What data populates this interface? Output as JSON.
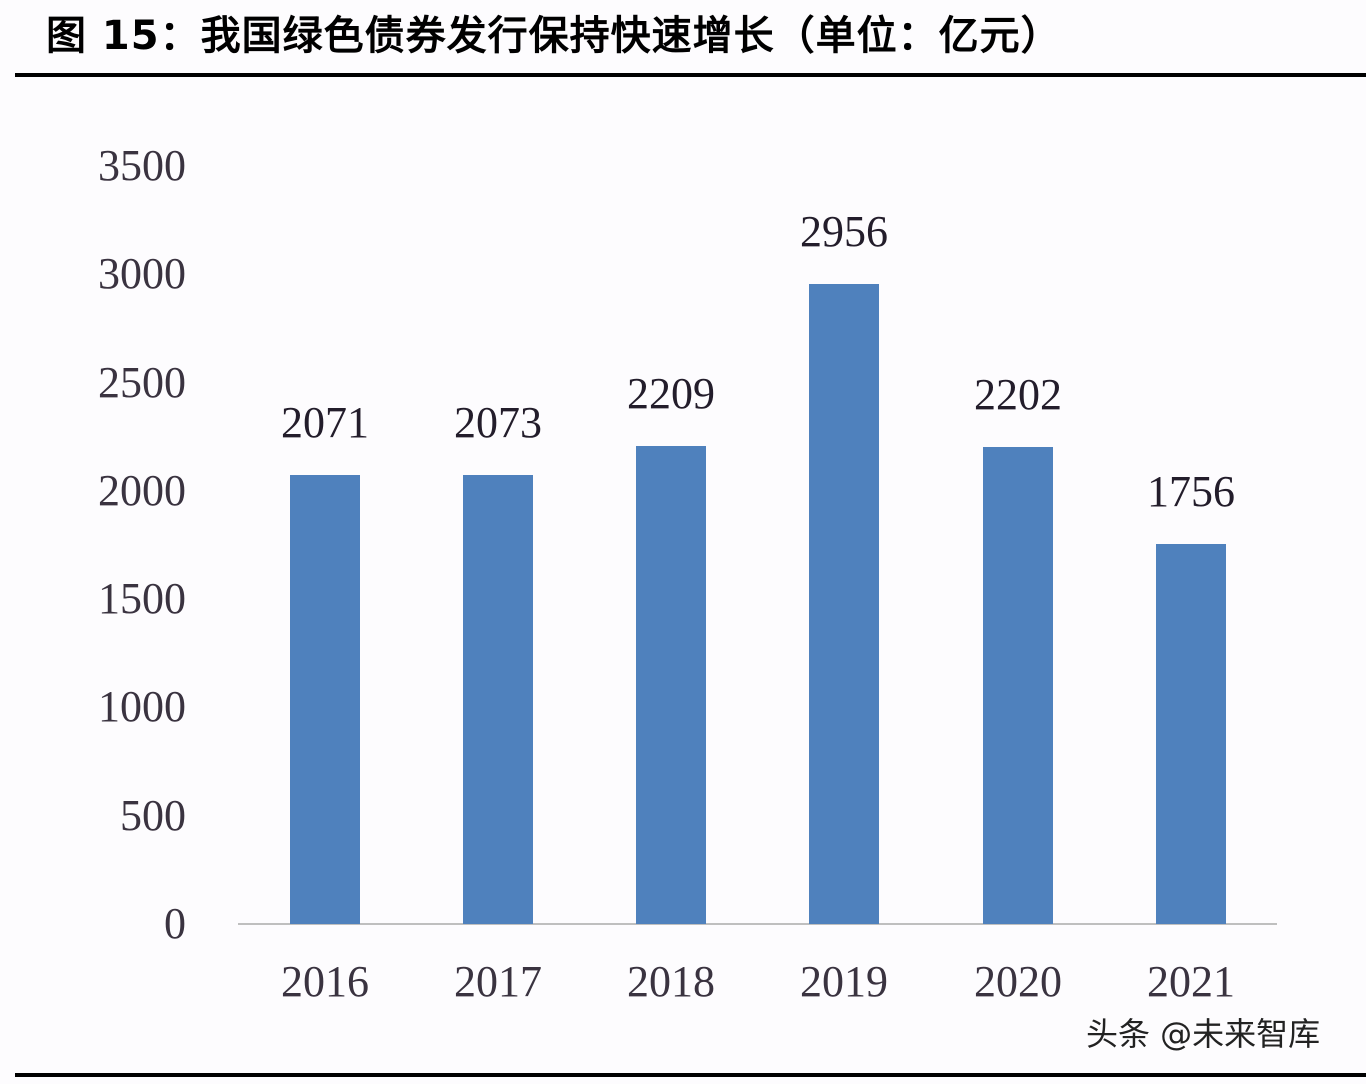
{
  "header": {
    "title": "图 15：我国绿色债券发行保持快速增长（单位：亿元）"
  },
  "watermark": "头条 @未来智库",
  "colors": {
    "bar": "#4f81bd",
    "axis": "#bfbfbf",
    "rule": "#000000"
  },
  "chart_data": {
    "type": "bar",
    "title": "图 15：我国绿色债券发行保持快速增长（单位：亿元）",
    "xlabel": "",
    "ylabel": "亿元",
    "categories": [
      "2016",
      "2017",
      "2018",
      "2019",
      "2020",
      "2021"
    ],
    "values": [
      2071,
      2073,
      2209,
      2956,
      2202,
      1756
    ],
    "value_labels": [
      "2071",
      "2073",
      "2209",
      "2956",
      "2202",
      "1756"
    ],
    "ylim": [
      0,
      3500
    ],
    "yticks": [
      "0",
      "500",
      "1000",
      "1500",
      "2000",
      "2500",
      "3000",
      "3500"
    ],
    "grid": false,
    "legend": null
  }
}
